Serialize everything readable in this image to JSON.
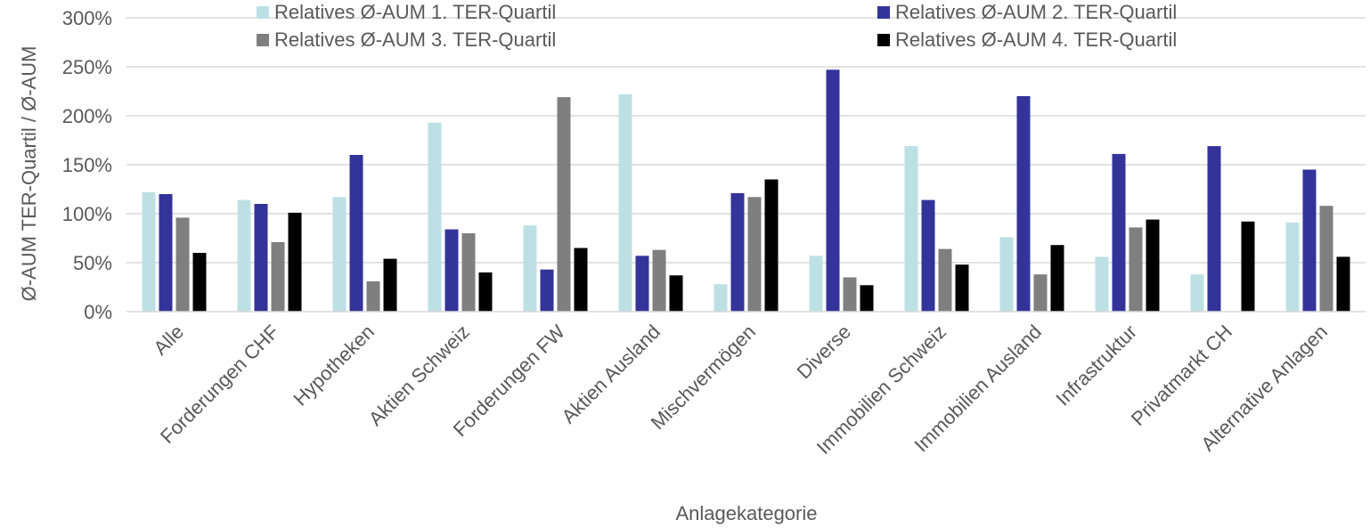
{
  "chart_data": {
    "type": "bar",
    "xlabel": "Anlagekategorie",
    "ylabel": "Ø-AUM TER-Quartil / Ø-AUM",
    "ylim": [
      0,
      300
    ],
    "yticks": [
      0,
      50,
      100,
      150,
      200,
      250,
      300
    ],
    "ytick_suffix": "%",
    "grid": true,
    "legend_position": "top",
    "categories": [
      "Alle",
      "Forderungen CHF",
      "Hypotheken",
      "Aktien Schweiz",
      "Forderungen FW",
      "Aktien Ausland",
      "Mischvermögen",
      "Diverse",
      "Immobilien Schweiz",
      "Immobilien Ausland",
      "Infrastruktur",
      "Privatmarkt CH",
      "Alternative Anlagen"
    ],
    "series": [
      {
        "name": "Relatives Ø-AUM 1. TER-Quartil",
        "color": "#bde0e4",
        "values": [
          122,
          114,
          117,
          193,
          88,
          222,
          28,
          57,
          169,
          76,
          56,
          38,
          91
        ]
      },
      {
        "name": "Relatives Ø-AUM 2. TER-Quartil",
        "color": "#33339a",
        "values": [
          120,
          110,
          160,
          84,
          43,
          57,
          121,
          247,
          114,
          220,
          161,
          169,
          145
        ]
      },
      {
        "name": "Relatives Ø-AUM 3. TER-Quartil",
        "color": "#7f7f7f",
        "values": [
          96,
          71,
          31,
          80,
          219,
          63,
          117,
          35,
          64,
          38,
          86,
          0,
          108
        ]
      },
      {
        "name": "Relatives Ø-AUM 4. TER-Quartil",
        "color": "#000000",
        "values": [
          60,
          101,
          54,
          40,
          65,
          37,
          135,
          27,
          48,
          68,
          94,
          92,
          56
        ]
      }
    ]
  }
}
